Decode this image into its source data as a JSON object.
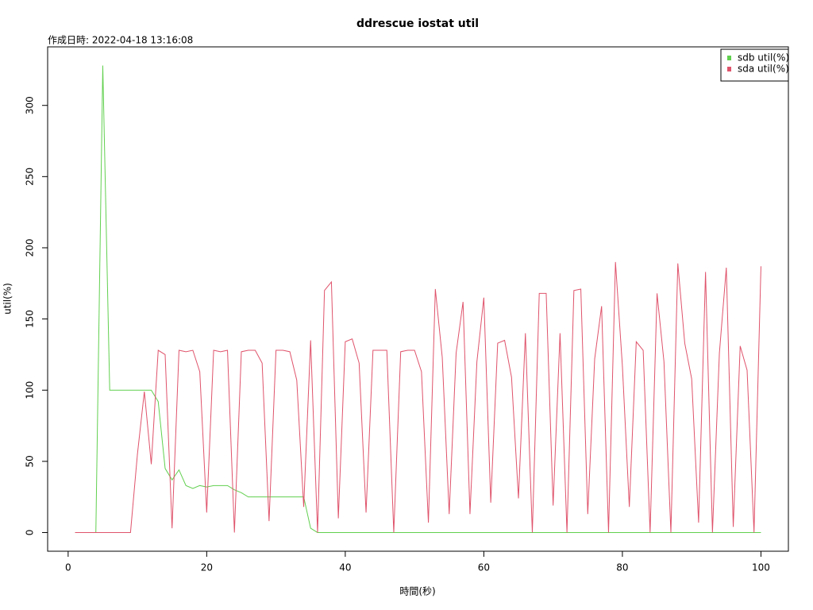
{
  "chart_data": {
    "type": "line",
    "title": "ddrescue iostat util",
    "annotation": "作成日時: 2022-04-18 13:16:08",
    "x_label": "時間(秒)",
    "y_label": "util(%)",
    "x": [
      1,
      2,
      3,
      4,
      5,
      6,
      7,
      8,
      9,
      10,
      11,
      12,
      13,
      14,
      15,
      16,
      17,
      18,
      19,
      20,
      21,
      22,
      23,
      24,
      25,
      26,
      27,
      28,
      29,
      30,
      31,
      32,
      33,
      34,
      35,
      36,
      37,
      38,
      39,
      40,
      41,
      42,
      43,
      44,
      45,
      46,
      47,
      48,
      49,
      50,
      51,
      52,
      53,
      54,
      55,
      56,
      57,
      58,
      59,
      60,
      61,
      62,
      63,
      64,
      65,
      66,
      67,
      68,
      69,
      70,
      71,
      72,
      73,
      74,
      75,
      76,
      77,
      78,
      79,
      80,
      81,
      82,
      83,
      84,
      85,
      86,
      87,
      88,
      89,
      90,
      91,
      92,
      93,
      94,
      95,
      96,
      97,
      98,
      99,
      100
    ],
    "series": [
      {
        "name": "sdb util(%)",
        "color": "#61D04F",
        "values": [
          0,
          0,
          0,
          0,
          328,
          100,
          100,
          100,
          100,
          100,
          100,
          100,
          92,
          45,
          37,
          44,
          33,
          31,
          33,
          32,
          33,
          33,
          33,
          30,
          28,
          25,
          25,
          25,
          25,
          25,
          25,
          25,
          25,
          25,
          3,
          0,
          0,
          0,
          0,
          0,
          0,
          0,
          0,
          0,
          0,
          0,
          0,
          0,
          0,
          0,
          0,
          0,
          0,
          0,
          0,
          0,
          0,
          0,
          0,
          0,
          0,
          0,
          0,
          0,
          0,
          0,
          0,
          0,
          0,
          0,
          0,
          0,
          0,
          0,
          0,
          0,
          0,
          0,
          0,
          0,
          0,
          0,
          0,
          0,
          0,
          0,
          0,
          0,
          0,
          0,
          0,
          0,
          0,
          0,
          0,
          0,
          0,
          0,
          0,
          0
        ]
      },
      {
        "name": "sda util(%)",
        "color": "#DF536B",
        "values": [
          0,
          0,
          0,
          0,
          0,
          0,
          0,
          0,
          0,
          55,
          99,
          48,
          128,
          125,
          3,
          128,
          127,
          128,
          113,
          14,
          128,
          127,
          128,
          0,
          127,
          128,
          128,
          119,
          8,
          128,
          128,
          127,
          107,
          18,
          135,
          0,
          170,
          176,
          10,
          134,
          136,
          119,
          14,
          128,
          128,
          128,
          0,
          127,
          128,
          128,
          113,
          7,
          171,
          123,
          13,
          126,
          162,
          13,
          120,
          165,
          21,
          133,
          135,
          109,
          24,
          140,
          0,
          168,
          168,
          19,
          140,
          0,
          170,
          171,
          13,
          122,
          159,
          0,
          190,
          117,
          18,
          134,
          128,
          0,
          168,
          120,
          0,
          189,
          133,
          108,
          7,
          183,
          0,
          126,
          186,
          4,
          131,
          114,
          0,
          187
        ]
      }
    ],
    "xlim": [
      -2.96,
      103.96
    ],
    "ylim": [
      -13.12,
      341.12
    ],
    "xticks": [
      0,
      20,
      40,
      60,
      80,
      100
    ],
    "yticks": [
      0,
      50,
      100,
      150,
      200,
      250,
      300
    ],
    "legend": "top-right",
    "grid": false
  }
}
